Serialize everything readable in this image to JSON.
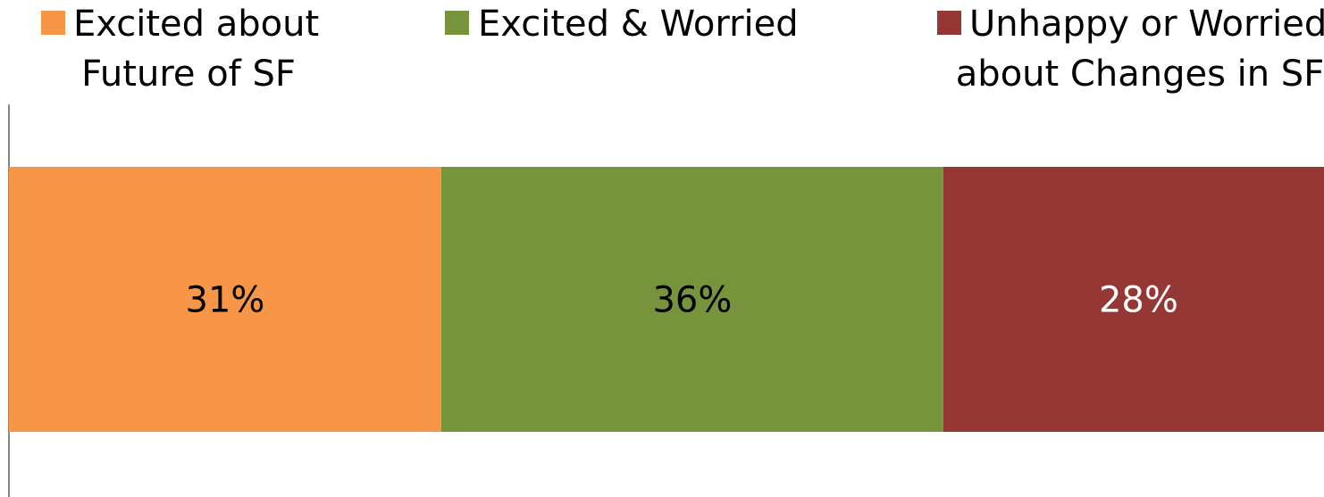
{
  "chart_data": {
    "type": "bar",
    "orientation": "horizontal",
    "stacked": true,
    "title": "",
    "xlabel": "",
    "ylabel": "",
    "categories": [
      ""
    ],
    "legend_position": "top",
    "grid": false,
    "xlim": [
      0,
      95
    ],
    "series": [
      {
        "name": "Excited about Future of SF",
        "name_lines": [
          "Excited about",
          "Future of SF"
        ],
        "values": [
          31
        ],
        "label": "31%",
        "color": "#f79646",
        "label_color": "#000000"
      },
      {
        "name": "Excited & Worried",
        "name_lines": [
          "Excited & Worried"
        ],
        "values": [
          36
        ],
        "label": "36%",
        "color": "#77933c",
        "label_color": "#000000"
      },
      {
        "name": "Unhappy or Worried about Changes in SF",
        "name_lines": [
          "Unhappy or Worried",
          "about Changes in SF"
        ],
        "values": [
          28
        ],
        "label": "28%",
        "color": "#953735",
        "label_color": "#ffffff"
      }
    ]
  }
}
